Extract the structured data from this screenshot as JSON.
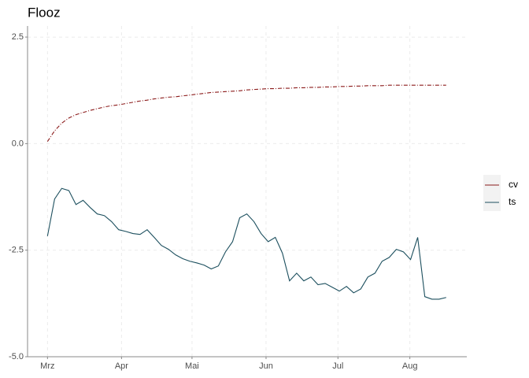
{
  "chart_data": {
    "type": "line",
    "title": "Flooz",
    "ylim": [
      -5.0,
      2.76
    ],
    "yticks": [
      2.5,
      {
        "value": 0,
        "label": "0.0"
      },
      -2.5,
      {
        "value": -5,
        "label": "-5.0"
      }
    ],
    "xlim": [
      -2.8,
      58.9
    ],
    "xticks": [
      {
        "value": 0,
        "label": "Mrz"
      },
      {
        "value": 10.4,
        "label": "Apr"
      },
      {
        "value": 20.3,
        "label": "Mai"
      },
      {
        "value": 30.7,
        "label": "Jun"
      },
      {
        "value": 40.8,
        "label": "Jul"
      },
      {
        "value": 50.9,
        "label": "Aug"
      }
    ],
    "grid": true,
    "legend": "right",
    "series": [
      {
        "name": "cv",
        "color": "#8b1a1a",
        "linetype": "dotdash",
        "values": [
          0.05,
          0.3,
          0.48,
          0.6,
          0.68,
          0.73,
          0.78,
          0.82,
          0.86,
          0.89,
          0.91,
          0.94,
          0.97,
          1.0,
          1.02,
          1.05,
          1.07,
          1.09,
          1.1,
          1.12,
          1.14,
          1.16,
          1.18,
          1.2,
          1.21,
          1.22,
          1.23,
          1.24,
          1.26,
          1.27,
          1.28,
          1.29,
          1.29,
          1.3,
          1.3,
          1.31,
          1.31,
          1.32,
          1.32,
          1.33,
          1.33,
          1.34,
          1.34,
          1.35,
          1.35,
          1.36,
          1.36,
          1.36,
          1.37,
          1.37,
          1.37,
          1.37,
          1.37,
          1.37,
          1.37,
          1.37,
          1.37
        ]
      },
      {
        "name": "ts",
        "color": "#1c4f5e",
        "linetype": "solid",
        "values": [
          -2.17,
          -1.3,
          -1.05,
          -1.1,
          -1.43,
          -1.33,
          -1.5,
          -1.65,
          -1.69,
          -1.83,
          -2.02,
          -2.06,
          -2.11,
          -2.13,
          -2.02,
          -2.2,
          -2.39,
          -2.48,
          -2.61,
          -2.7,
          -2.76,
          -2.8,
          -2.85,
          -2.94,
          -2.87,
          -2.54,
          -2.3,
          -1.74,
          -1.65,
          -1.83,
          -2.11,
          -2.3,
          -2.2,
          -2.57,
          -3.22,
          -3.04,
          -3.22,
          -3.13,
          -3.31,
          -3.28,
          -3.37,
          -3.46,
          -3.35,
          -3.5,
          -3.41,
          -3.13,
          -3.04,
          -2.76,
          -2.67,
          -2.48,
          -2.54,
          -2.72,
          -2.2,
          -3.59,
          -3.65,
          -3.65,
          -3.61
        ]
      }
    ]
  }
}
